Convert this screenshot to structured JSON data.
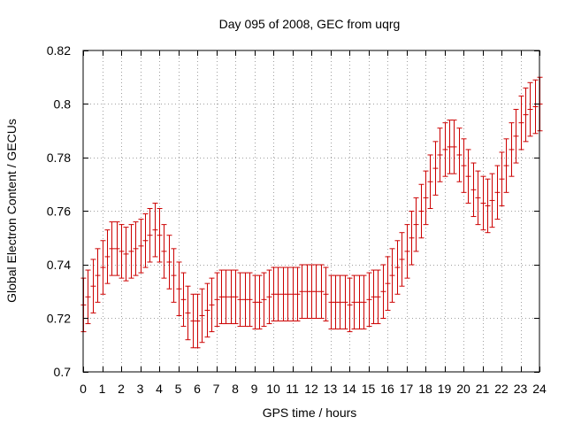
{
  "chart_data": {
    "type": "errorbar",
    "title": "Day 095 of 2008, GEC from uqrg",
    "xlabel": "GPS time / hours",
    "ylabel": "Global Electron Content / GECUs",
    "xlim": [
      0,
      24
    ],
    "ylim": [
      0.7,
      0.82
    ],
    "xticks": [
      "0",
      "1",
      "2",
      "3",
      "4",
      "5",
      "6",
      "7",
      "8",
      "9",
      "10",
      "11",
      "12",
      "13",
      "14",
      "15",
      "16",
      "17",
      "18",
      "19",
      "20",
      "21",
      "22",
      "23",
      "24"
    ],
    "yticks": [
      "0.7",
      "0.72",
      "0.74",
      "0.76",
      "0.78",
      "0.8",
      "0.82"
    ],
    "grid": true,
    "series_color": "#cc0000",
    "error_halfwidth": 0.01,
    "x": [
      0,
      0.25,
      0.5,
      0.75,
      1,
      1.25,
      1.5,
      1.75,
      2,
      2.25,
      2.5,
      2.75,
      3,
      3.25,
      3.5,
      3.75,
      4,
      4.25,
      4.5,
      4.75,
      5,
      5.25,
      5.5,
      5.75,
      6,
      6.25,
      6.5,
      6.75,
      7,
      7.25,
      7.5,
      7.75,
      8,
      8.25,
      8.5,
      8.75,
      9,
      9.25,
      9.5,
      9.75,
      10,
      10.25,
      10.5,
      10.75,
      11,
      11.25,
      11.5,
      11.75,
      12,
      12.25,
      12.5,
      12.75,
      13,
      13.25,
      13.5,
      13.75,
      14,
      14.25,
      14.5,
      14.75,
      15,
      15.25,
      15.5,
      15.75,
      16,
      16.25,
      16.5,
      16.75,
      17,
      17.25,
      17.5,
      17.75,
      18,
      18.25,
      18.5,
      18.75,
      19,
      19.25,
      19.5,
      19.75,
      20,
      20.25,
      20.5,
      20.75,
      21,
      21.25,
      21.5,
      21.75,
      22,
      22.25,
      22.5,
      22.75,
      23,
      23.25,
      23.5,
      23.75,
      24
    ],
    "y": [
      0.725,
      0.728,
      0.732,
      0.736,
      0.739,
      0.743,
      0.746,
      0.746,
      0.745,
      0.744,
      0.745,
      0.746,
      0.747,
      0.749,
      0.751,
      0.753,
      0.751,
      0.745,
      0.741,
      0.736,
      0.731,
      0.727,
      0.722,
      0.719,
      0.719,
      0.721,
      0.723,
      0.725,
      0.727,
      0.728,
      0.728,
      0.728,
      0.728,
      0.727,
      0.727,
      0.727,
      0.726,
      0.726,
      0.727,
      0.728,
      0.729,
      0.729,
      0.729,
      0.729,
      0.729,
      0.729,
      0.73,
      0.73,
      0.73,
      0.73,
      0.73,
      0.729,
      0.726,
      0.726,
      0.726,
      0.726,
      0.725,
      0.726,
      0.726,
      0.726,
      0.727,
      0.728,
      0.728,
      0.73,
      0.733,
      0.736,
      0.739,
      0.742,
      0.745,
      0.75,
      0.755,
      0.76,
      0.765,
      0.771,
      0.776,
      0.781,
      0.783,
      0.784,
      0.784,
      0.781,
      0.777,
      0.773,
      0.768,
      0.765,
      0.763,
      0.762,
      0.764,
      0.767,
      0.772,
      0.777,
      0.783,
      0.788,
      0.793,
      0.796,
      0.798,
      0.799,
      0.8
    ]
  }
}
